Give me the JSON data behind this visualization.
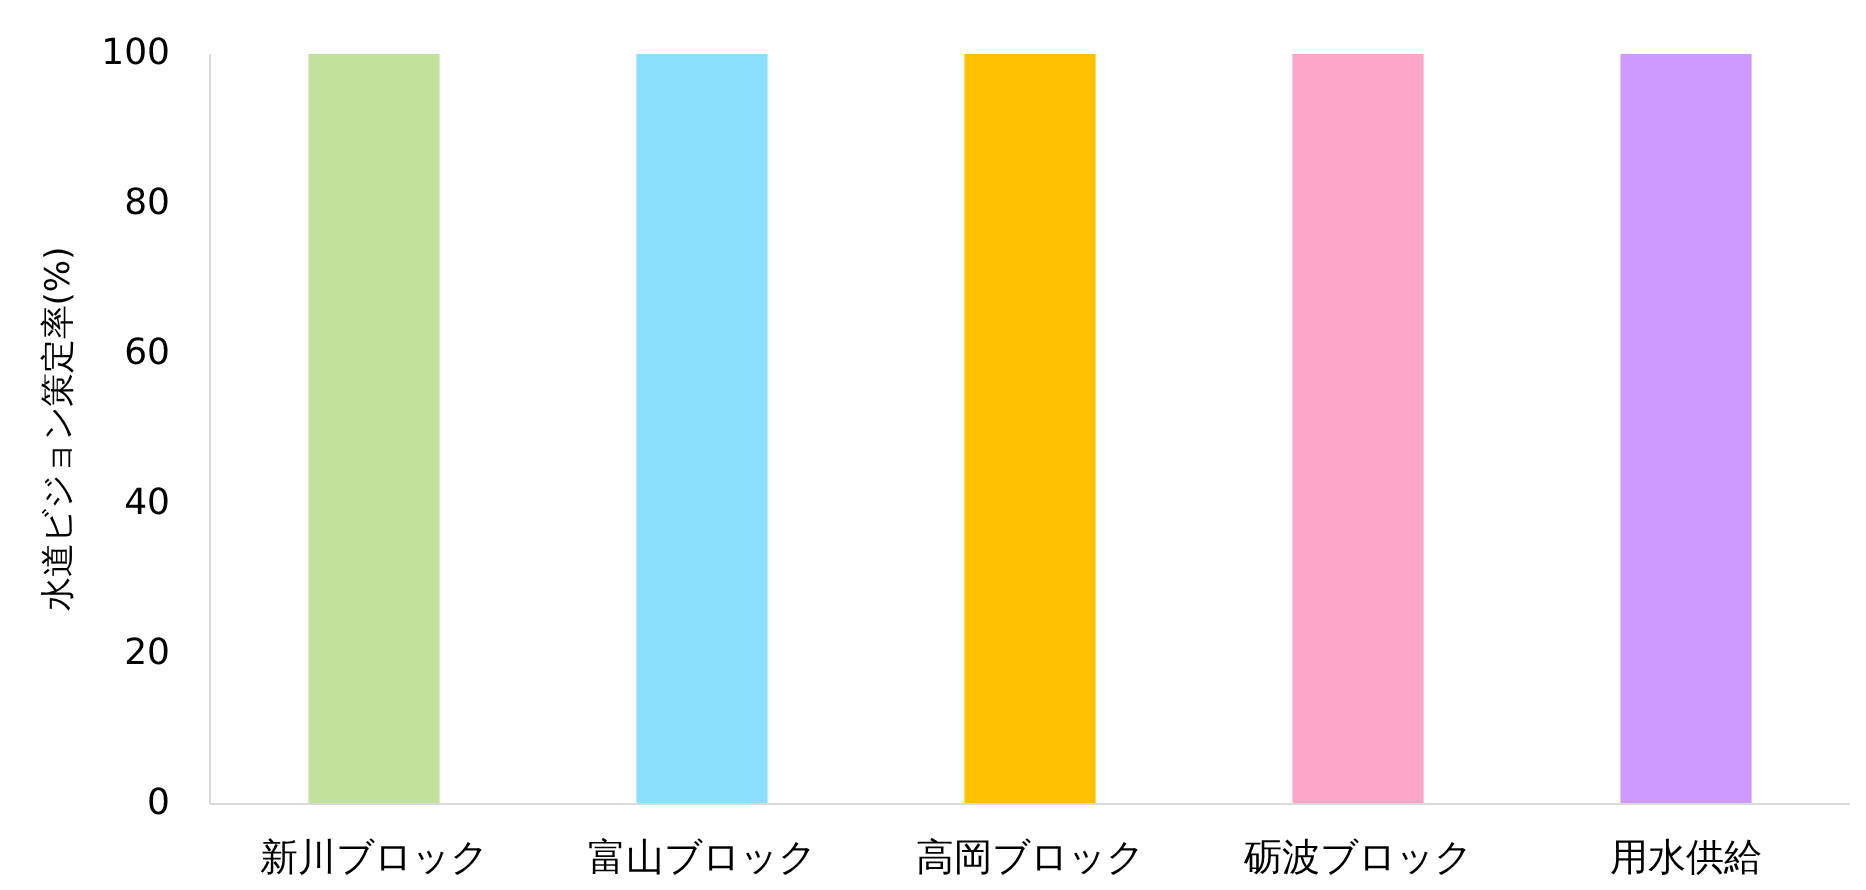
{
  "chart_data": {
    "type": "bar",
    "ylabel": "水道ビジョン策定率(%)",
    "categories": [
      "新川ブロック",
      "富山ブロック",
      "高岡ブロック",
      "砺波ブロック",
      "用水供給"
    ],
    "values": [
      100,
      100,
      100,
      100,
      100
    ],
    "colors": [
      "#c0e29a",
      "#8ae0fc",
      "#ffc000",
      "#fba6c6",
      "#cc99ff"
    ],
    "ylim": [
      0,
      100
    ],
    "yticks": [
      0,
      20,
      40,
      60,
      80,
      100
    ],
    "grid": false
  }
}
